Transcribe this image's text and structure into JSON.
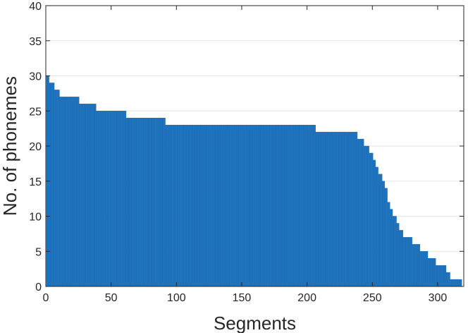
{
  "chart_data": {
    "type": "bar",
    "title": "",
    "xlabel": "Segments",
    "ylabel": "No. of phonemes",
    "xlim": [
      0,
      320
    ],
    "ylim": [
      0,
      40
    ],
    "xticks": [
      0,
      50,
      100,
      150,
      200,
      250,
      300
    ],
    "yticks": [
      0,
      5,
      10,
      15,
      20,
      25,
      30,
      35,
      40
    ],
    "grid": "y-major",
    "bar_color": "#1f77c4",
    "bar_edge_color": "#1a5f9e",
    "runs": [
      {
        "from": 1,
        "to": 2,
        "value": 30
      },
      {
        "from": 3,
        "to": 6,
        "value": 29
      },
      {
        "from": 7,
        "to": 10,
        "value": 28
      },
      {
        "from": 11,
        "to": 25,
        "value": 27
      },
      {
        "from": 26,
        "to": 38,
        "value": 26
      },
      {
        "from": 39,
        "to": 61,
        "value": 25
      },
      {
        "from": 62,
        "to": 91,
        "value": 24
      },
      {
        "from": 92,
        "to": 206,
        "value": 23
      },
      {
        "from": 207,
        "to": 238,
        "value": 22
      },
      {
        "from": 239,
        "to": 243,
        "value": 21
      },
      {
        "from": 244,
        "to": 247,
        "value": 20
      },
      {
        "from": 248,
        "to": 250,
        "value": 19
      },
      {
        "from": 251,
        "to": 252,
        "value": 18
      },
      {
        "from": 253,
        "to": 254,
        "value": 17
      },
      {
        "from": 255,
        "to": 257,
        "value": 16
      },
      {
        "from": 258,
        "to": 259,
        "value": 15
      },
      {
        "from": 260,
        "to": 261,
        "value": 14
      },
      {
        "from": 262,
        "to": 263,
        "value": 12
      },
      {
        "from": 264,
        "to": 265,
        "value": 11
      },
      {
        "from": 266,
        "to": 268,
        "value": 10
      },
      {
        "from": 269,
        "to": 270,
        "value": 9
      },
      {
        "from": 271,
        "to": 273,
        "value": 8
      },
      {
        "from": 274,
        "to": 280,
        "value": 7
      },
      {
        "from": 281,
        "to": 286,
        "value": 6
      },
      {
        "from": 287,
        "to": 292,
        "value": 5
      },
      {
        "from": 293,
        "to": 298,
        "value": 4
      },
      {
        "from": 299,
        "to": 306,
        "value": 3
      },
      {
        "from": 307,
        "to": 309,
        "value": 2
      },
      {
        "from": 310,
        "to": 318,
        "value": 1
      }
    ]
  }
}
